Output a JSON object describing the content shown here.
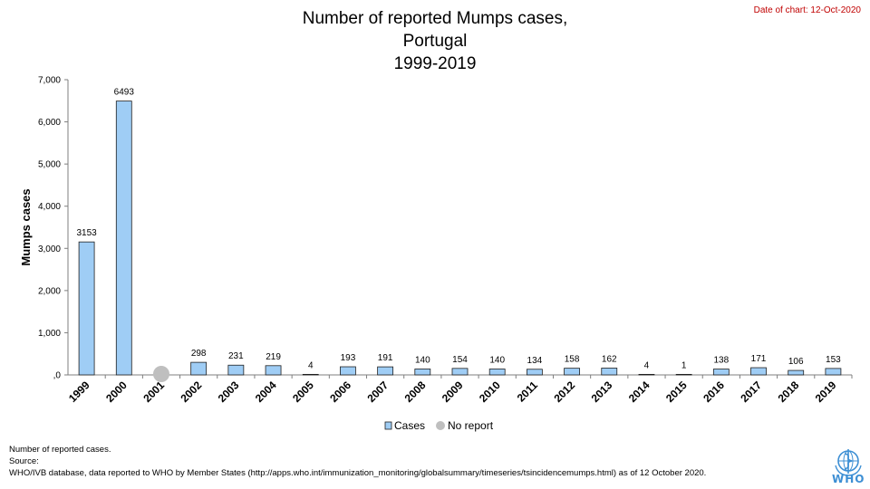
{
  "header": {
    "title_lines": [
      "Number of reported Mumps cases,",
      "Portugal",
      "1999-2019"
    ],
    "date_text": "Date of chart: 12-Oct-2020"
  },
  "chart_data": {
    "type": "bar",
    "title": "Number of reported Mumps cases, Portugal 1999-2019",
    "ylabel": "Mumps cases",
    "xlabel": "",
    "ylim": [
      0,
      7000
    ],
    "yticks": [
      0,
      1000,
      2000,
      3000,
      4000,
      5000,
      6000,
      7000
    ],
    "ytick_labels": [
      ",0",
      "1,000",
      "2,000",
      "3,000",
      "4,000",
      "5,000",
      "6,000",
      "7,000"
    ],
    "categories": [
      "1999",
      "2000",
      "2001",
      "2002",
      "2003",
      "2004",
      "2005",
      "2006",
      "2007",
      "2008",
      "2009",
      "2010",
      "2011",
      "2012",
      "2013",
      "2014",
      "2015",
      "2016",
      "2017",
      "2018",
      "2019"
    ],
    "series": [
      {
        "name": "Cases",
        "values": [
          3153,
          6493,
          null,
          298,
          231,
          219,
          4,
          193,
          191,
          140,
          154,
          140,
          134,
          158,
          162,
          4,
          1,
          138,
          171,
          106,
          153
        ]
      }
    ],
    "no_report": [
      "2001"
    ],
    "legend": {
      "position": "bottom",
      "items": [
        "Cases",
        "No report"
      ]
    },
    "grid": false,
    "colors": {
      "bar_fill": "#9fcdf5",
      "bar_stroke": "#1f1f1f",
      "no_report": "#bfbfbf"
    }
  },
  "footnote": {
    "line1": "Number of reported cases.",
    "line2": "Source:",
    "line3": "WHO/IVB database, data reported to WHO by Member States (http://apps.who.int/immunization_monitoring/globalsummary/timeseries/tsincidencemumps.html) as of 12 October 2020."
  },
  "logo": {
    "text": "WHO",
    "color": "#3d8fd4"
  }
}
